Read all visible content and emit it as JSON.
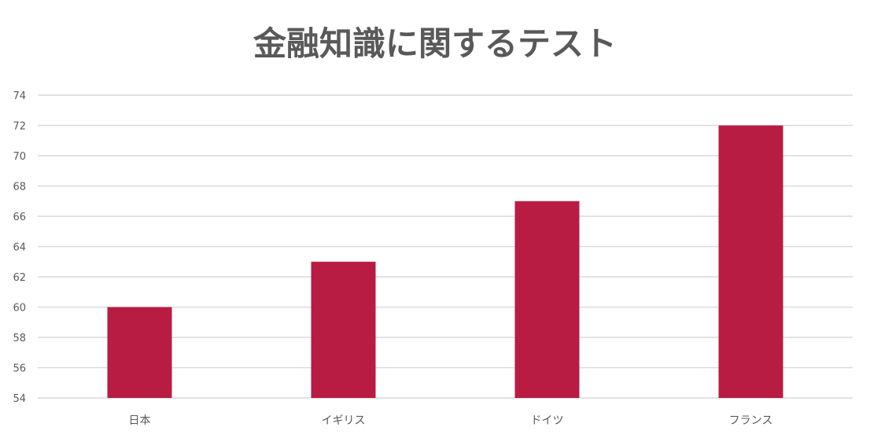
{
  "chart_data": {
    "type": "bar",
    "title": "金融知識に関するテスト",
    "categories": [
      "日本",
      "イギリス",
      "ドイツ",
      "フランス"
    ],
    "values": [
      60,
      63,
      67,
      72
    ],
    "xlabel": "",
    "ylabel": "",
    "ylim": [
      54,
      74
    ],
    "yticks": [
      54,
      56,
      58,
      60,
      62,
      64,
      66,
      68,
      70,
      72,
      74
    ],
    "grid": true,
    "colors": {
      "bar": "#b81c42",
      "grid": "#d9d9d9",
      "text": "#595959"
    }
  }
}
